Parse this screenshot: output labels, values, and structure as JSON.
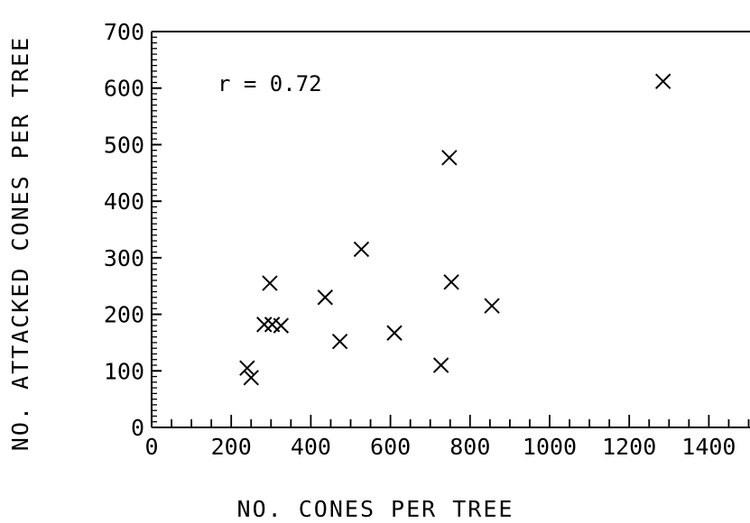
{
  "chart_data": {
    "type": "scatter",
    "title": "",
    "xlabel": "NO. CONES PER TREE",
    "ylabel": "NO. ATTACKED CONES PER TREE",
    "annotation": "r = 0.72",
    "xlim": [
      0,
      1500
    ],
    "ylim": [
      0,
      700
    ],
    "x_ticks": [
      0,
      200,
      400,
      600,
      800,
      1000,
      1200,
      1400
    ],
    "y_ticks": [
      0,
      100,
      200,
      300,
      400,
      500,
      600,
      700
    ],
    "marker": "x",
    "grid": false,
    "points": [
      {
        "x": 240,
        "y": 105
      },
      {
        "x": 250,
        "y": 88
      },
      {
        "x": 283,
        "y": 182
      },
      {
        "x": 297,
        "y": 255
      },
      {
        "x": 303,
        "y": 182
      },
      {
        "x": 325,
        "y": 180
      },
      {
        "x": 436,
        "y": 230
      },
      {
        "x": 473,
        "y": 152
      },
      {
        "x": 527,
        "y": 315
      },
      {
        "x": 610,
        "y": 167
      },
      {
        "x": 727,
        "y": 110
      },
      {
        "x": 748,
        "y": 477
      },
      {
        "x": 753,
        "y": 257
      },
      {
        "x": 855,
        "y": 215
      },
      {
        "x": 1285,
        "y": 612
      }
    ]
  }
}
